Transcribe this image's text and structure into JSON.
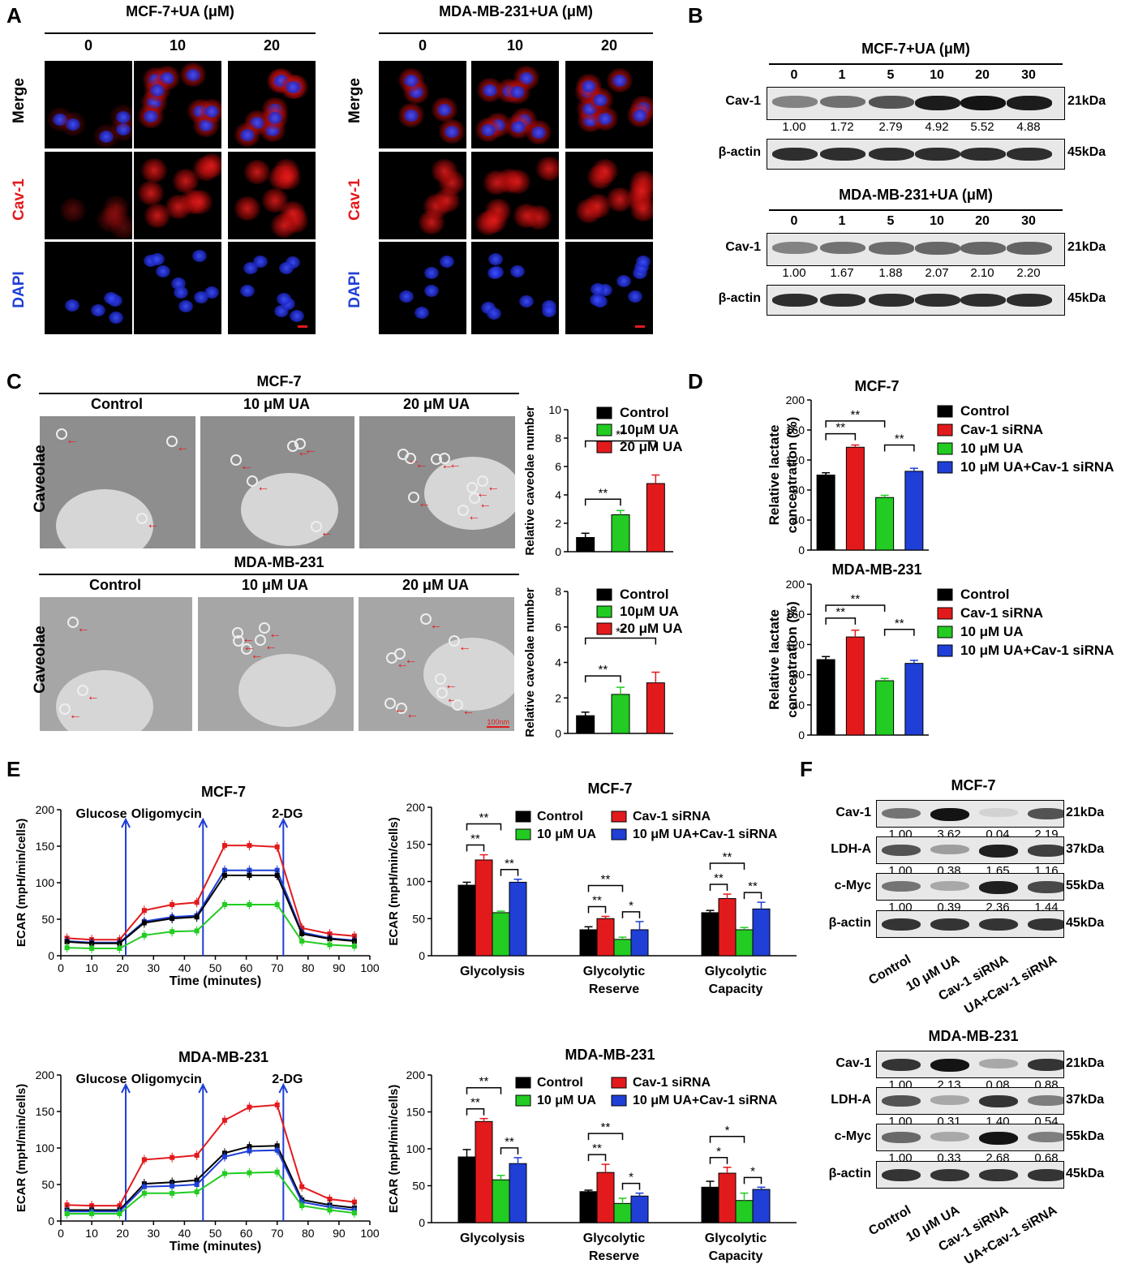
{
  "panels": {
    "A": "A",
    "B": "B",
    "C": "C",
    "D": "D",
    "E": "E",
    "F": "F"
  },
  "panelA": {
    "groups": [
      {
        "title": "MCF-7+UA (μM)",
        "doses": [
          "0",
          "10",
          "20"
        ]
      },
      {
        "title": "MDA-MB-231+UA (μM)",
        "doses": [
          "0",
          "10",
          "20"
        ]
      }
    ],
    "rows": [
      "Merge",
      "Cav-1",
      "DAPI"
    ],
    "row_colors": {
      "Merge": "#000000",
      "Cav-1": "#e31a1c",
      "DAPI": "#1f3fd6"
    }
  },
  "panelB": {
    "blots": [
      {
        "title": "MCF-7+UA (μM)",
        "doses": [
          "0",
          "1",
          "5",
          "10",
          "20",
          "30"
        ],
        "target": "Cav-1",
        "target_kda": "21kDa",
        "values": [
          "1.00",
          "1.72",
          "2.79",
          "4.92",
          "5.52",
          "4.88"
        ],
        "control": "β-actin",
        "control_kda": "45kDa"
      },
      {
        "title": "MDA-MB-231+UA (μM)",
        "doses": [
          "0",
          "1",
          "5",
          "10",
          "20",
          "30"
        ],
        "target": "Cav-1",
        "target_kda": "21kDa",
        "values": [
          "1.00",
          "1.67",
          "1.88",
          "2.07",
          "2.10",
          "2.20"
        ],
        "control": "β-actin",
        "control_kda": "45kDa"
      }
    ]
  },
  "panelC": {
    "groups": [
      {
        "title": "MCF-7",
        "conds": [
          "Control",
          "10 μM UA",
          "20 μM UA"
        ],
        "row_label": "Caveolae"
      },
      {
        "title": "MDA-MB-231",
        "conds": [
          "Control",
          "10 μM UA",
          "20 μM UA"
        ],
        "row_label": "Caveolae"
      }
    ],
    "scale_label": "100nm"
  },
  "chart_data": [
    {
      "id": "C1",
      "type": "bar",
      "ylabel": "Relative caveolae number",
      "ylim": [
        0,
        10
      ],
      "yticks": [
        0,
        2,
        4,
        6,
        8,
        10
      ],
      "categories": [
        "Control",
        "10μM UA",
        "20 μM UA"
      ],
      "values": [
        1.0,
        2.6,
        4.8
      ],
      "errors": [
        0.3,
        0.3,
        0.6
      ],
      "colors": [
        "#000000",
        "#22cc22",
        "#e31a1c"
      ],
      "sig": [
        {
          "label": "**",
          "from": 0,
          "to": 1
        },
        {
          "label": "**",
          "from": 0,
          "to": 2
        }
      ]
    },
    {
      "id": "C2",
      "type": "bar",
      "ylabel": "Relative caveolae number",
      "ylim": [
        0,
        8
      ],
      "yticks": [
        0,
        2,
        4,
        6,
        8
      ],
      "categories": [
        "Control",
        "10μM UA",
        "20 μM UA"
      ],
      "values": [
        1.0,
        2.2,
        2.85
      ],
      "errors": [
        0.2,
        0.4,
        0.6
      ],
      "colors": [
        "#000000",
        "#22cc22",
        "#e31a1c"
      ],
      "sig": [
        {
          "label": "**",
          "from": 0,
          "to": 1
        },
        {
          "label": "**",
          "from": 0,
          "to": 2
        }
      ]
    },
    {
      "id": "D1",
      "type": "bar",
      "title": "MCF-7",
      "ylabel": "Relative lactate concentration (%)",
      "ylim": [
        0,
        200
      ],
      "yticks": [
        0,
        40,
        80,
        120,
        160,
        200
      ],
      "categories": [
        "Control",
        "Cav-1 siRNA",
        "10 μM UA",
        "10 μM UA+Cav-1 siRNA"
      ],
      "values": [
        100,
        137,
        70,
        105
      ],
      "errors": [
        3,
        3,
        3,
        4
      ],
      "colors": [
        "#000000",
        "#e31a1c",
        "#22cc22",
        "#1f3fd6"
      ],
      "sig": [
        {
          "label": "**",
          "from": 0,
          "to": 1
        },
        {
          "label": "**",
          "from": 0,
          "to": 2
        },
        {
          "label": "**",
          "from": 2,
          "to": 3
        }
      ]
    },
    {
      "id": "D2",
      "type": "bar",
      "title": "MDA-MB-231",
      "ylabel": "Relative lactate concentration (%)",
      "ylim": [
        0,
        200
      ],
      "yticks": [
        0,
        40,
        80,
        120,
        160,
        200
      ],
      "categories": [
        "Control",
        "Cav-1 siRNA",
        "10 μM UA",
        "10 μM UA+Cav-1 siRNA"
      ],
      "values": [
        100,
        130,
        72,
        95
      ],
      "errors": [
        4,
        9,
        3,
        4
      ],
      "colors": [
        "#000000",
        "#e31a1c",
        "#22cc22",
        "#1f3fd6"
      ],
      "sig": [
        {
          "label": "**",
          "from": 0,
          "to": 1
        },
        {
          "label": "**",
          "from": 0,
          "to": 2
        },
        {
          "label": "**",
          "from": 2,
          "to": 3
        }
      ]
    },
    {
      "id": "E1",
      "type": "line",
      "title": "MCF-7",
      "xlabel": "Time (minutes)",
      "ylabel": "ECAR (mpH/min/cells)",
      "xlim": [
        0,
        100
      ],
      "ylim": [
        0,
        200
      ],
      "xticks": [
        0,
        10,
        20,
        30,
        40,
        50,
        60,
        70,
        80,
        90,
        100
      ],
      "yticks": [
        0,
        50,
        100,
        150,
        200
      ],
      "injections": [
        {
          "label": "Glucose",
          "x": 21
        },
        {
          "label": "Oligomycin",
          "x": 46
        },
        {
          "label": "2-DG",
          "x": 72
        }
      ],
      "x": [
        2,
        10,
        19,
        27,
        36,
        44,
        53,
        61,
        70,
        78,
        87,
        95
      ],
      "series": [
        {
          "color": "#e31a1c",
          "values": [
            24,
            22,
            22,
            62,
            70,
            73,
            151,
            151,
            149,
            38,
            30,
            27
          ]
        },
        {
          "color": "#1f3fd6",
          "values": [
            20,
            18,
            18,
            47,
            53,
            55,
            117,
            117,
            117,
            32,
            24,
            21
          ]
        },
        {
          "color": "#000000",
          "values": [
            19,
            17,
            17,
            45,
            51,
            53,
            110,
            110,
            110,
            30,
            23,
            20
          ]
        },
        {
          "color": "#22cc22",
          "values": [
            11,
            10,
            10,
            28,
            33,
            34,
            70,
            70,
            70,
            20,
            15,
            13
          ]
        }
      ]
    },
    {
      "id": "E2",
      "type": "bar",
      "title": "MCF-7",
      "ylabel": "ECAR (mpH/min/cells)",
      "ylim": [
        0,
        200
      ],
      "yticks": [
        0,
        50,
        100,
        150,
        200
      ],
      "categories": [
        "Glycolysis",
        "Glycolytic Reserve",
        "Glycolytic Capacity"
      ],
      "series": [
        {
          "name": "Control",
          "color": "#000000",
          "values": [
            95,
            35,
            58
          ],
          "errors": [
            4,
            4,
            3
          ]
        },
        {
          "name": "Cav-1 siRNA",
          "color": "#e31a1c",
          "values": [
            129,
            50,
            77
          ],
          "errors": [
            7,
            3,
            6
          ]
        },
        {
          "name": "10 μM UA",
          "color": "#22cc22",
          "values": [
            58,
            22,
            35
          ],
          "errors": [
            2,
            3,
            3
          ]
        },
        {
          "name": "10 μM UA+Cav-1 siRNA",
          "color": "#1f3fd6",
          "values": [
            99,
            35,
            63
          ],
          "errors": [
            4,
            11,
            9
          ]
        }
      ],
      "sig": [
        {
          "group": 0,
          "label": "**",
          "from": 0,
          "to": 1
        },
        {
          "group": 0,
          "label": "**",
          "from": 0,
          "to": 2
        },
        {
          "group": 0,
          "label": "**",
          "from": 2,
          "to": 3
        },
        {
          "group": 1,
          "label": "**",
          "from": 0,
          "to": 1
        },
        {
          "group": 1,
          "label": "**",
          "from": 0,
          "to": 2
        },
        {
          "group": 1,
          "label": "*",
          "from": 2,
          "to": 3
        },
        {
          "group": 2,
          "label": "**",
          "from": 0,
          "to": 1
        },
        {
          "group": 2,
          "label": "**",
          "from": 0,
          "to": 2
        },
        {
          "group": 2,
          "label": "**",
          "from": 2,
          "to": 3
        }
      ]
    },
    {
      "id": "E3",
      "type": "line",
      "title": "MDA-MB-231",
      "xlabel": "Time (minutes)",
      "ylabel": "ECAR (mpH/min/cells)",
      "xlim": [
        0,
        100
      ],
      "ylim": [
        0,
        200
      ],
      "xticks": [
        0,
        10,
        20,
        30,
        40,
        50,
        60,
        70,
        80,
        90,
        100
      ],
      "yticks": [
        0,
        50,
        100,
        150,
        200
      ],
      "injections": [
        {
          "label": "Glucose",
          "x": 21
        },
        {
          "label": "Oligomycin",
          "x": 46
        },
        {
          "label": "2-DG",
          "x": 72
        }
      ],
      "x": [
        2,
        10,
        19,
        27,
        36,
        44,
        53,
        61,
        70,
        78,
        87,
        95
      ],
      "series": [
        {
          "color": "#e31a1c",
          "values": [
            22,
            21,
            21,
            84,
            87,
            90,
            138,
            156,
            159,
            47,
            30,
            26
          ]
        },
        {
          "color": "#000000",
          "values": [
            15,
            15,
            15,
            51,
            53,
            56,
            93,
            102,
            103,
            29,
            22,
            18
          ]
        },
        {
          "color": "#1f3fd6",
          "values": [
            13,
            13,
            13,
            47,
            48,
            50,
            88,
            96,
            97,
            26,
            19,
            15
          ]
        },
        {
          "color": "#22cc22",
          "values": [
            10,
            10,
            10,
            38,
            38,
            40,
            65,
            66,
            67,
            21,
            15,
            11
          ]
        }
      ]
    },
    {
      "id": "E4",
      "type": "bar",
      "title": "MDA-MB-231",
      "ylabel": "ECAR (mpH/min/cells)",
      "ylim": [
        0,
        200
      ],
      "yticks": [
        0,
        50,
        100,
        150,
        200
      ],
      "categories": [
        "Glycolysis",
        "Glycolytic Reserve",
        "Glycolytic Capacity"
      ],
      "series": [
        {
          "name": "Control",
          "color": "#000000",
          "values": [
            89,
            42,
            48
          ],
          "errors": [
            10,
            2,
            8
          ]
        },
        {
          "name": "Cav-1 siRNA",
          "color": "#e31a1c",
          "values": [
            137,
            68,
            67
          ],
          "errors": [
            4,
            11,
            8
          ]
        },
        {
          "name": "10 μM UA",
          "color": "#22cc22",
          "values": [
            58,
            26,
            30
          ],
          "errors": [
            6,
            7,
            10
          ]
        },
        {
          "name": "10 μM UA+Cav-1 siRNA",
          "color": "#1f3fd6",
          "values": [
            80,
            36,
            45
          ],
          "errors": [
            8,
            4,
            3
          ]
        }
      ],
      "sig": [
        {
          "group": 0,
          "label": "**",
          "from": 0,
          "to": 1
        },
        {
          "group": 0,
          "label": "**",
          "from": 0,
          "to": 2
        },
        {
          "group": 0,
          "label": "**",
          "from": 2,
          "to": 3
        },
        {
          "group": 1,
          "label": "**",
          "from": 0,
          "to": 1
        },
        {
          "group": 1,
          "label": "**",
          "from": 0,
          "to": 2
        },
        {
          "group": 1,
          "label": "*",
          "from": 2,
          "to": 3
        },
        {
          "group": 2,
          "label": "*",
          "from": 0,
          "to": 1
        },
        {
          "group": 2,
          "label": "*",
          "from": 0,
          "to": 2
        },
        {
          "group": 2,
          "label": "*",
          "from": 2,
          "to": 3
        }
      ]
    }
  ],
  "panelF": {
    "blots": [
      {
        "title": "MCF-7",
        "lanes": [
          "Control",
          "10 μM UA",
          "Cav-1 siRNA",
          "UA+Cav-1 siRNA"
        ],
        "rows": [
          {
            "label": "Cav-1",
            "kda": "21kDa",
            "values": [
              "1.00",
              "3.62",
              "0.04",
              "2.19"
            ],
            "int": [
              0.55,
              1.0,
              0.1,
              0.7
            ]
          },
          {
            "label": "LDH-A",
            "kda": "37kDa",
            "values": [
              "1.00",
              "0.38",
              "1.65",
              "1.16"
            ],
            "int": [
              0.7,
              0.35,
              0.95,
              0.8
            ]
          },
          {
            "label": "c-Myc",
            "kda": "55kDa",
            "values": [
              "1.00",
              "0.39",
              "2.36",
              "1.44"
            ],
            "int": [
              0.55,
              0.3,
              0.95,
              0.75
            ]
          },
          {
            "label": "β-actin",
            "kda": "45kDa",
            "values": null,
            "int": [
              0.85,
              0.85,
              0.85,
              0.85
            ]
          }
        ]
      },
      {
        "title": "MDA-MB-231",
        "lanes": [
          "Control",
          "10 μM UA",
          "Cav-1 siRNA",
          "UA+Cav-1 siRNA"
        ],
        "rows": [
          {
            "label": "Cav-1",
            "kda": "21kDa",
            "values": [
              "1.00",
              "2.13",
              "0.08",
              "0.88"
            ],
            "int": [
              0.85,
              1.0,
              0.3,
              0.85
            ]
          },
          {
            "label": "LDH-A",
            "kda": "37kDa",
            "values": [
              "1.00",
              "0.31",
              "1.40",
              "0.54"
            ],
            "int": [
              0.7,
              0.3,
              0.85,
              0.5
            ]
          },
          {
            "label": "c-Myc",
            "kda": "55kDa",
            "values": [
              "1.00",
              "0.33",
              "2.68",
              "0.68"
            ],
            "int": [
              0.6,
              0.3,
              1.0,
              0.5
            ]
          },
          {
            "label": "β-actin",
            "kda": "45kDa",
            "values": null,
            "int": [
              0.85,
              0.85,
              0.85,
              0.85
            ]
          }
        ]
      }
    ]
  }
}
